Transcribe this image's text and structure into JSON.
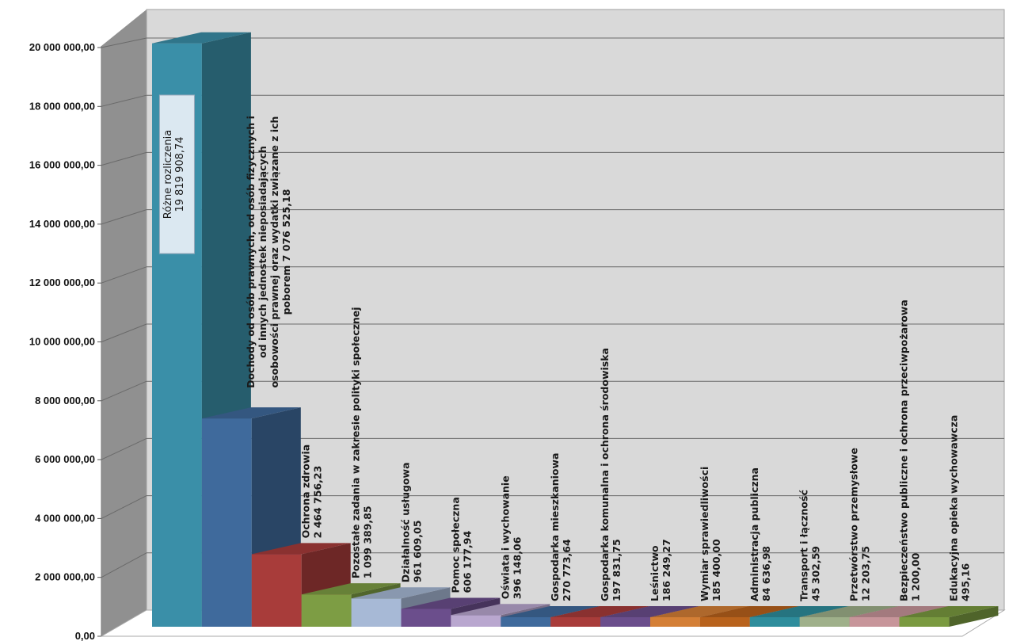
{
  "chart_data": {
    "type": "bar",
    "ylim": [
      0,
      20000000
    ],
    "grid": true,
    "legend": "none",
    "y_ticks": [
      "0,00",
      "2 000 000,00",
      "4 000 000,00",
      "6 000 000,00",
      "8 000 000,00",
      "10 000 000,00",
      "12 000 000,00",
      "14 000 000,00",
      "16 000 000,00",
      "18 000 000,00",
      "20 000 000,00"
    ],
    "categories": [
      "Różne rozliczenia",
      "Dochody od osób prawnych, od osób fizycznych i od innych jednostek nieposiadających osobowości prawnej oraz wydatki związane z ich poborem",
      "Ochrona zdrowia",
      "Pozostałe zadania w zakresie polityki społecznej",
      "Działalność usługowa",
      "Pomoc społeczna",
      "Oświata i wychowanie",
      "Gospodarka mieszkaniowa",
      "Gospodarka komunalna i ochrona środowiska",
      "Leśnictwo",
      "Wymiar sprawiedliwości",
      "Administracja publiczna",
      "Transport i łączność",
      "Przetwórstwo przemysłowe",
      "Bezpieczeństwo publiczne i ochrona przeciwpożarowa",
      "Edukacyjna opieka wychowawcza"
    ],
    "values": [
      19819908.74,
      7076525.18,
      2464756.23,
      1099389.85,
      961609.05,
      606177.94,
      396148.06,
      270773.64,
      197831.75,
      186249.27,
      185400.0,
      84636.98,
      45302.59,
      12203.75,
      1200.0,
      495.16
    ],
    "data_labels": [
      [
        "Różne rozliczenia",
        "19 819 908,74"
      ],
      [
        "Dochody od osób prawnych, od osób fizycznych i",
        "od innych jednostek nieposiadających",
        "osobowości prawnej oraz wydatki związane z ich",
        "poborem 7 076 525,18"
      ],
      [
        "Ochrona zdrowia",
        "2 464 756,23"
      ],
      [
        "Pozostałe zadania w zakresie polityki społecznej",
        "1 099 389,85"
      ],
      [
        "Działalność usługowa",
        "961 609,05"
      ],
      [
        "Pomoc społeczna",
        "606 177,94"
      ],
      [
        "Oświata i wychowanie",
        "396 148,06"
      ],
      [
        "Gospodarka mieszkaniowa",
        "270 773,64"
      ],
      [
        "Gospodarka komunalna i ochrona środowiska",
        "197 831,75"
      ],
      [
        "Leśnictwo",
        "186 249,27"
      ],
      [
        "Wymiar sprawiedliwości",
        "185 400,00"
      ],
      [
        "Administracja publiczna",
        "84 636,98"
      ],
      [
        "Transport i łączność",
        "45 302,59"
      ],
      [
        "Przetwórstwo przemysłowe",
        "12 203,75"
      ],
      [
        "Bezpieczeństwo publiczne i ochrona przeciwpożarowa",
        "1 200,00"
      ],
      [
        "Edukacyjna opieka wychowawcza",
        "495,16"
      ]
    ],
    "colors": [
      "#3a8fa8",
      "#3f6a9c",
      "#a83c3a",
      "#7d9d44",
      "#a7b9d6",
      "#6b4e8c",
      "#b9a7cf",
      "#3f6a9c",
      "#a83c3a",
      "#6b4e8c",
      "#d47f36",
      "#b8621c",
      "#2e8d9c",
      "#9fb08a",
      "#c7959a",
      "#7a9a40"
    ]
  }
}
